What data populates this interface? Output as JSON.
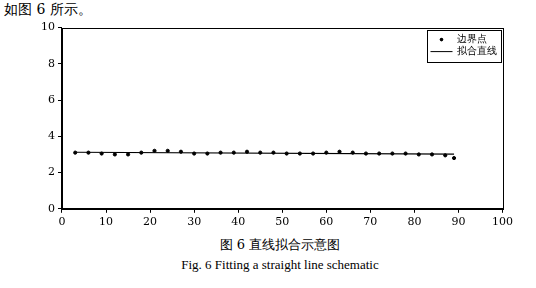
{
  "document": {
    "lead": "如图 6 所示。",
    "caption_zh": "图 6 直线拟合示意图",
    "caption_en": "Fig. 6 Fitting a straight line schematic"
  },
  "chart_data": {
    "type": "scatter",
    "xlim": [
      0,
      100
    ],
    "xticks": [
      0,
      10,
      20,
      30,
      40,
      50,
      60,
      70,
      80,
      90,
      100
    ],
    "ylim": [
      0,
      10
    ],
    "yticks": [
      0,
      2,
      4,
      6,
      8,
      10
    ],
    "grid": false,
    "legend": "upper right",
    "series": [
      {
        "name": "边界点",
        "type": "scatter",
        "marker": "dot",
        "color": "#000000",
        "x": [
          3,
          6,
          9,
          12,
          15,
          18,
          21,
          24,
          27,
          30,
          33,
          36,
          39,
          42,
          45,
          48,
          51,
          54,
          57,
          60,
          63,
          66,
          69,
          72,
          75,
          78,
          81,
          84,
          87,
          89
        ],
        "values": [
          3.1,
          3.1,
          3.05,
          3.0,
          3.0,
          3.1,
          3.2,
          3.2,
          3.15,
          3.05,
          3.05,
          3.1,
          3.1,
          3.15,
          3.1,
          3.1,
          3.05,
          3.05,
          3.05,
          3.1,
          3.15,
          3.1,
          3.05,
          3.05,
          3.05,
          3.05,
          3.0,
          3.0,
          2.95,
          2.8
        ]
      },
      {
        "name": "拟合直线",
        "type": "line",
        "line_style": "solid",
        "color": "#000000",
        "x": [
          3,
          89
        ],
        "values": [
          3.12,
          3.02
        ]
      }
    ]
  }
}
